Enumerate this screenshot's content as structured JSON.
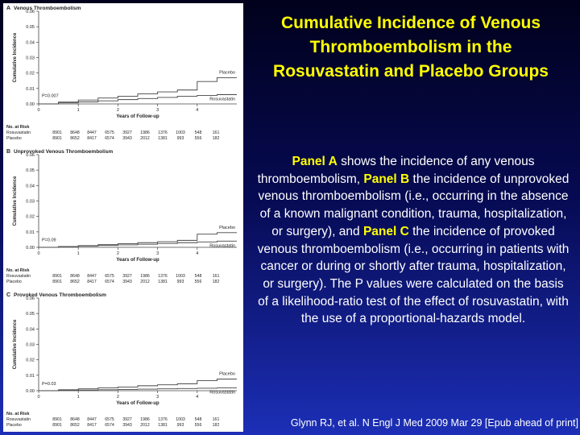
{
  "slide": {
    "title": "Cumulative Incidence of Venous Thromboembolism in the Rosuvastatin and Placebo Groups",
    "description": [
      {
        "text": "Panel A",
        "bold": true
      },
      {
        "text": " shows the incidence of any venous thromboembolism, ",
        "bold": false
      },
      {
        "text": "Panel B",
        "bold": true
      },
      {
        "text": " the incidence of unprovoked venous thromboembolism (i.e., occurring in the absence of a known malignant condition, trauma, hospitalization, or surgery), and ",
        "bold": false
      },
      {
        "text": "Panel C",
        "bold": true
      },
      {
        "text": " the incidence of provoked venous thromboembolism (i.e., occurring in patients with cancer or during or shortly after trauma, hospitalization, or surgery). The P values were calculated on the basis of a likelihood-ratio test of the effect of rosuvastatin, with the use of a proportional-hazards model.",
        "bold": false
      }
    ],
    "citation": "Glynn RJ, et al. N Engl J Med 2009 Mar 29 [Epub ahead of print]"
  },
  "chart_data": [
    {
      "type": "line",
      "panel_letter": "A",
      "title": "Venous Thromboembolism",
      "xlabel": "Years of Follow-up",
      "ylabel": "Cumulative Incidence",
      "xlim": [
        0,
        5
      ],
      "ylim": [
        0,
        0.06
      ],
      "xticks": [
        0,
        1,
        2,
        3,
        4
      ],
      "yticks": [
        "0.00",
        "0.01",
        "0.02",
        "0.03",
        "0.04",
        "0.05",
        "0.06"
      ],
      "p_value": "P=0.007",
      "series": [
        {
          "name": "Placebo",
          "color": "#444444",
          "x": [
            0,
            0.5,
            1,
            1.5,
            2,
            2.5,
            3,
            3.5,
            4,
            4.5,
            5
          ],
          "y": [
            0,
            0.0012,
            0.0025,
            0.0038,
            0.005,
            0.0065,
            0.0078,
            0.009,
            0.0145,
            0.017,
            0.017
          ]
        },
        {
          "name": "Rosuvastatin",
          "color": "#444444",
          "x": [
            0,
            0.5,
            1,
            1.5,
            2,
            2.5,
            3,
            3.5,
            4,
            4.5,
            5
          ],
          "y": [
            0,
            0.0007,
            0.0013,
            0.002,
            0.0028,
            0.0035,
            0.0042,
            0.005,
            0.0055,
            0.006,
            0.006
          ]
        }
      ],
      "at_risk": {
        "header": "No. at Risk",
        "rows": [
          {
            "label": "Rosuvastatin",
            "values": [
              "8901",
              "8648",
              "8447",
              "6575",
              "3927",
              "1986",
              "1376",
              "1003",
              "548",
              "161"
            ]
          },
          {
            "label": "Placebo",
            "values": [
              "8901",
              "8652",
              "8417",
              "6574",
              "3943",
              "2012",
              "1381",
              "993",
              "556",
              "182"
            ]
          }
        ]
      }
    },
    {
      "type": "line",
      "panel_letter": "B",
      "title": "Unprovoked Venous Thromboembolism",
      "xlabel": "Years of Follow-up",
      "ylabel": "Cumulative Incidence",
      "xlim": [
        0,
        5
      ],
      "ylim": [
        0,
        0.06
      ],
      "xticks": [
        0,
        1,
        2,
        3,
        4
      ],
      "yticks": [
        "0.00",
        "0.01",
        "0.02",
        "0.03",
        "0.04",
        "0.05",
        "0.06"
      ],
      "p_value": "P=0.09",
      "series": [
        {
          "name": "Placebo",
          "color": "#444444",
          "x": [
            0,
            0.5,
            1,
            1.5,
            2,
            2.5,
            3,
            3.5,
            4,
            4.5,
            5
          ],
          "y": [
            0,
            0.0005,
            0.0011,
            0.0017,
            0.0023,
            0.003,
            0.0036,
            0.0045,
            0.0085,
            0.0095,
            0.0095
          ]
        },
        {
          "name": "Rosuvastatin",
          "color": "#444444",
          "x": [
            0,
            0.5,
            1,
            1.5,
            2,
            2.5,
            3,
            3.5,
            4,
            4.5,
            5
          ],
          "y": [
            0,
            0.0004,
            0.0008,
            0.0012,
            0.0016,
            0.002,
            0.0025,
            0.003,
            0.0035,
            0.004,
            0.004
          ]
        }
      ],
      "at_risk": {
        "header": "No. at Risk",
        "rows": [
          {
            "label": "Rosuvastatin",
            "values": [
              "8901",
              "8648",
              "8447",
              "6575",
              "3927",
              "1986",
              "1376",
              "1003",
              "548",
              "161"
            ]
          },
          {
            "label": "Placebo",
            "values": [
              "8901",
              "8652",
              "8417",
              "6574",
              "3943",
              "2012",
              "1381",
              "993",
              "556",
              "182"
            ]
          }
        ]
      }
    },
    {
      "type": "line",
      "panel_letter": "C",
      "title": "Provoked Venous Thromboembolism",
      "xlabel": "Years of Follow-up",
      "ylabel": "Cumulative Incidence",
      "xlim": [
        0,
        5
      ],
      "ylim": [
        0,
        0.06
      ],
      "xticks": [
        0,
        1,
        2,
        3,
        4
      ],
      "yticks": [
        "0.00",
        "0.01",
        "0.02",
        "0.03",
        "0.04",
        "0.05",
        "0.06"
      ],
      "p_value": "P=0.03",
      "series": [
        {
          "name": "Placebo",
          "color": "#444444",
          "x": [
            0,
            0.5,
            1,
            1.5,
            2,
            2.5,
            3,
            3.5,
            4,
            4.5,
            5
          ],
          "y": [
            0,
            0.0006,
            0.0012,
            0.0018,
            0.0024,
            0.0032,
            0.0038,
            0.0045,
            0.0065,
            0.0075,
            0.0075
          ]
        },
        {
          "name": "Rosuvastatin",
          "color": "#444444",
          "x": [
            0,
            0.5,
            1,
            1.5,
            2,
            2.5,
            3,
            3.5,
            4,
            4.5,
            5
          ],
          "y": [
            0,
            0.0002,
            0.0004,
            0.0006,
            0.0008,
            0.001,
            0.0012,
            0.0014,
            0.0016,
            0.0018,
            0.0018
          ]
        }
      ],
      "at_risk": {
        "header": "No. at Risk",
        "rows": [
          {
            "label": "Rosuvastatin",
            "values": [
              "8901",
              "8648",
              "8447",
              "6575",
              "3927",
              "1986",
              "1376",
              "1003",
              "548",
              "161"
            ]
          },
          {
            "label": "Placebo",
            "values": [
              "8901",
              "8652",
              "8417",
              "6574",
              "3943",
              "2012",
              "1381",
              "993",
              "556",
              "182"
            ]
          }
        ]
      }
    }
  ]
}
